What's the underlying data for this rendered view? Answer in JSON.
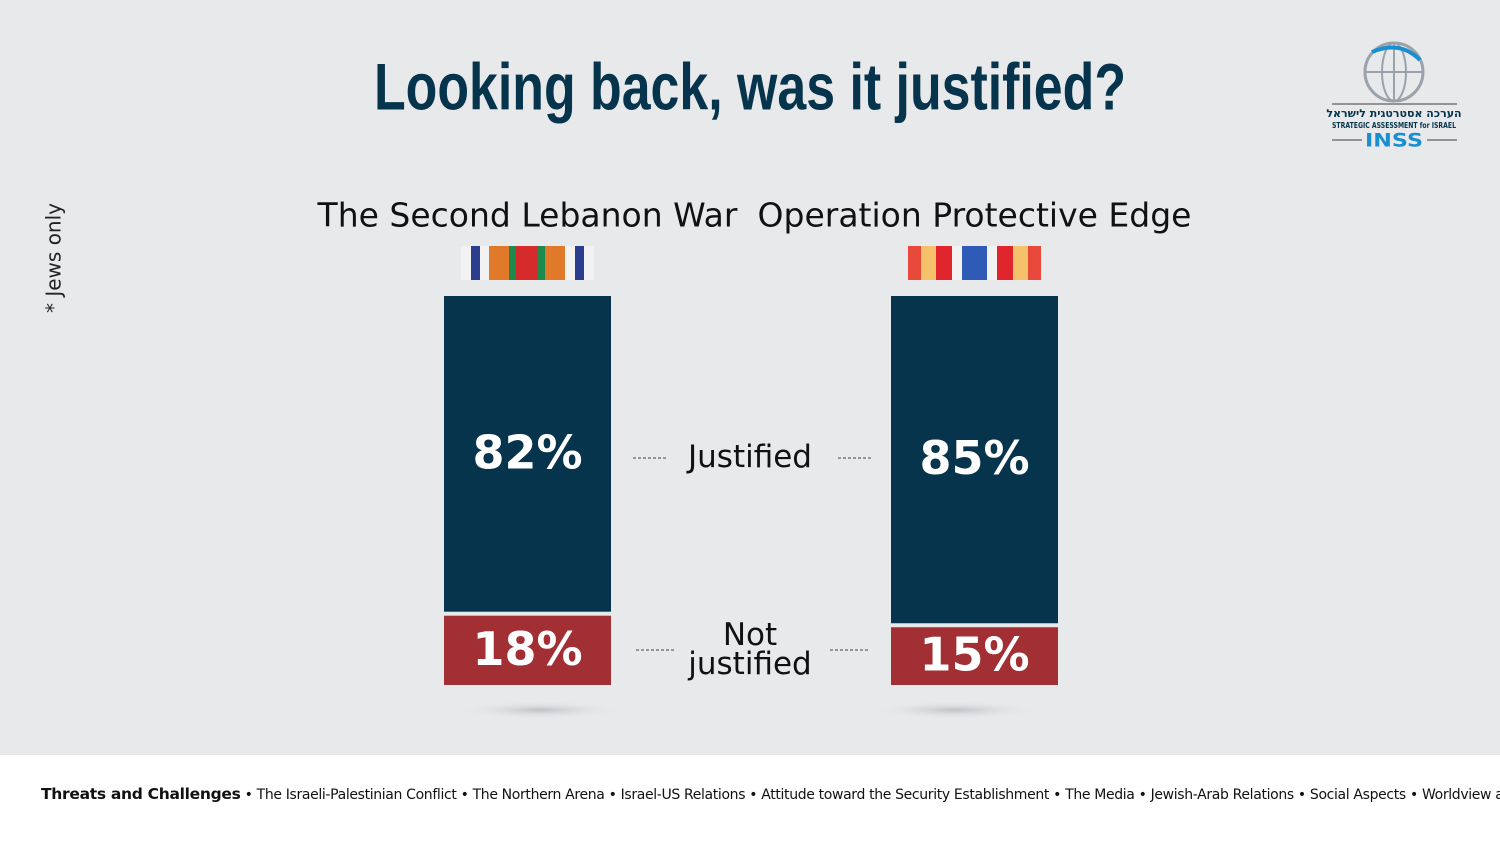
{
  "chart_data": {
    "type": "stacked_bar",
    "title": "Looking back, was it justified?",
    "note": "* Jews only",
    "categories": [
      "The Second Lebanon War",
      "Operation Protective Edge"
    ],
    "series": [
      {
        "name": "Justified",
        "color": "#06344d",
        "values": [
          82,
          85
        ],
        "value_labels": [
          "82%",
          "85%"
        ]
      },
      {
        "name": "Not justified",
        "color": "#a12f33",
        "values": [
          18,
          15
        ],
        "value_labels": [
          "18%",
          "15%"
        ]
      }
    ]
  },
  "logo": {
    "hebrew": "הערכה אסטרטגית לישראל",
    "english": "STRATEGIC ASSESSMENT for ISRAEL",
    "acronym": "INSS"
  },
  "footer": {
    "lead": "Threats and Challenges",
    "items": [
      "The Israeli-Palestinian Conflict",
      "The Northern  Arena",
      "Israel-US Relations",
      "Attitude toward the Security Establishment",
      "The Media",
      "Jewish-Arab Relations",
      "Social Aspects",
      "Worldview and values"
    ]
  }
}
